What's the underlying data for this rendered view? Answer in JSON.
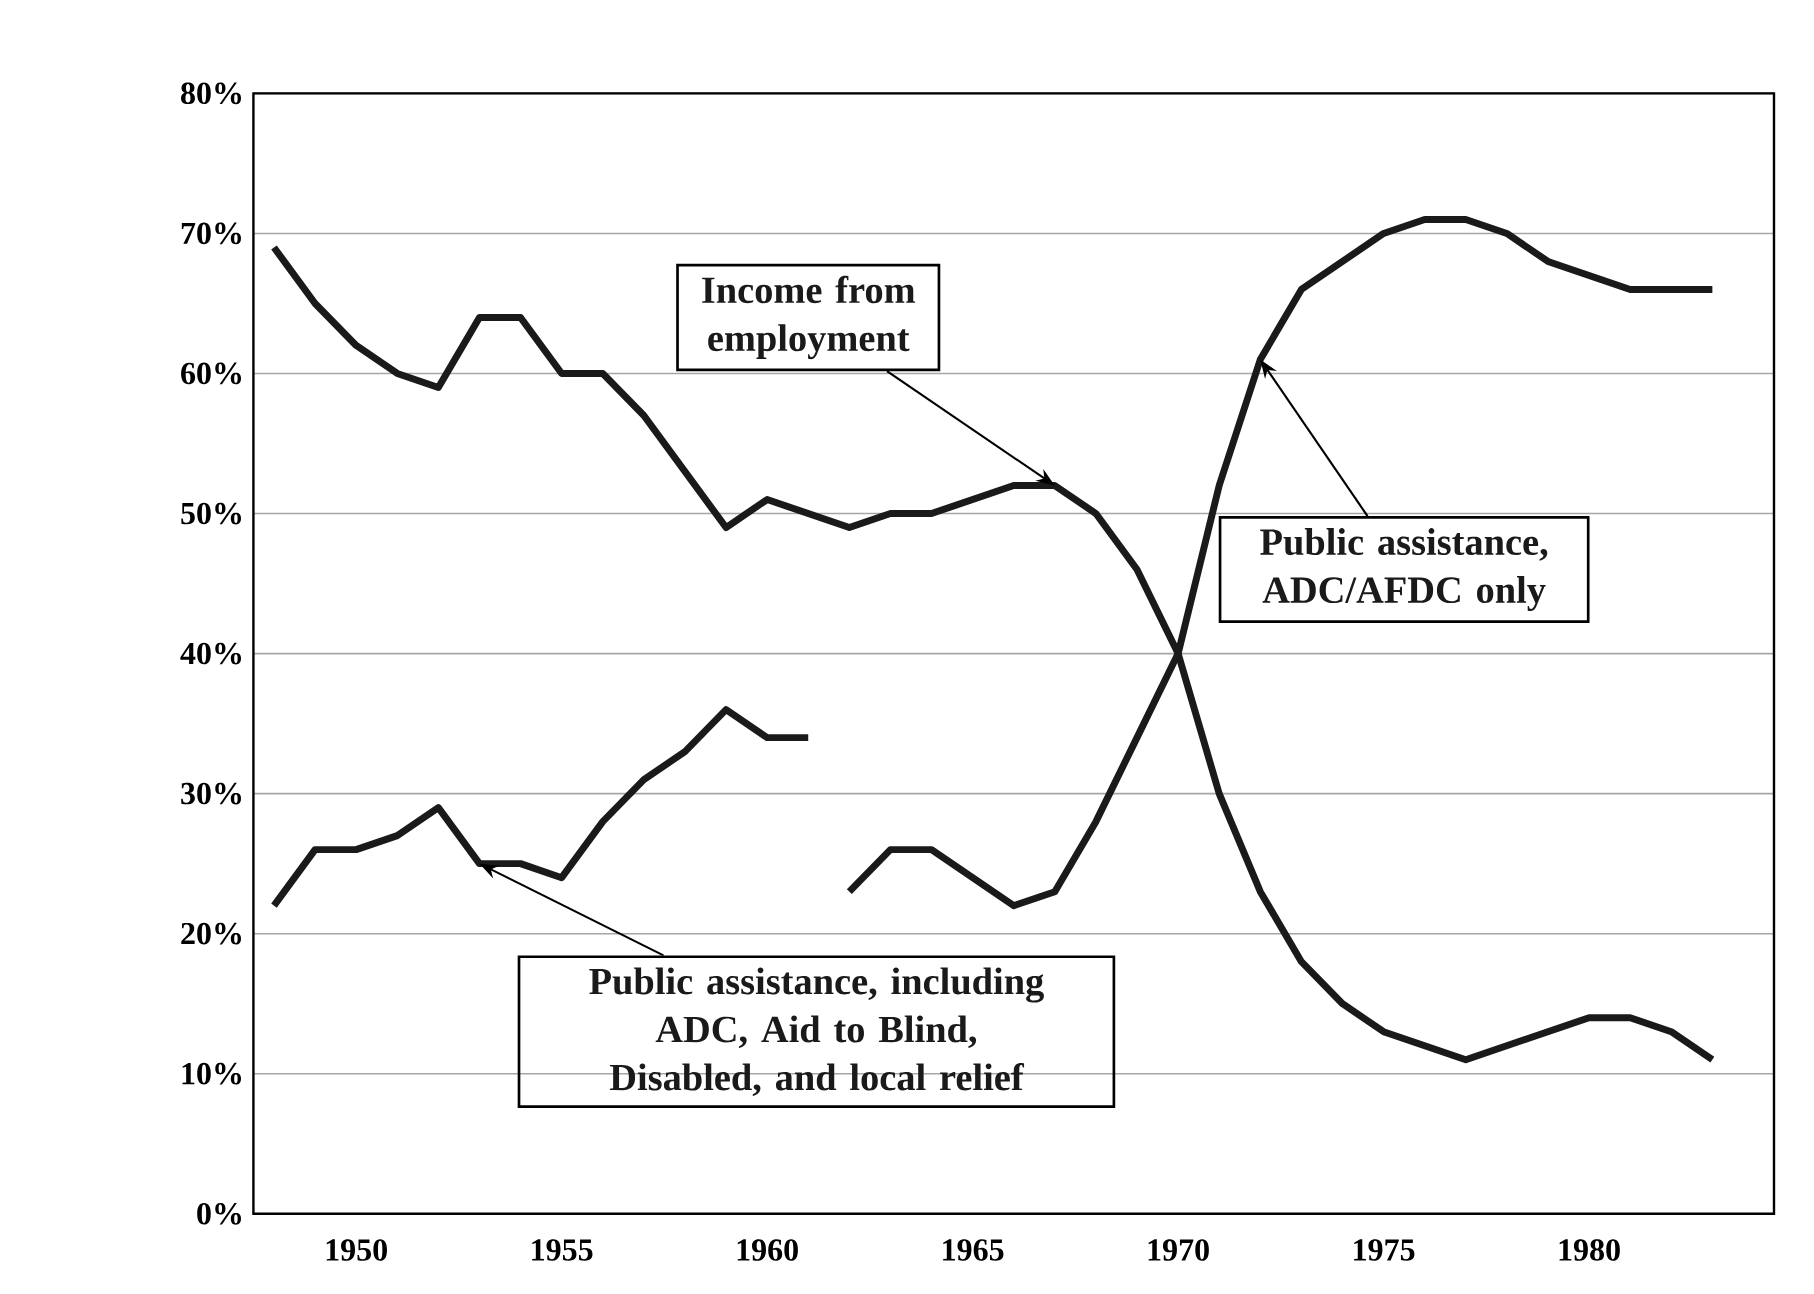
{
  "chart_data": {
    "type": "line",
    "x": [
      1948,
      1949,
      1950,
      1951,
      1952,
      1953,
      1954,
      1955,
      1956,
      1957,
      1958,
      1959,
      1960,
      1961,
      1962,
      1963,
      1964,
      1965,
      1966,
      1967,
      1968,
      1969,
      1970,
      1971,
      1972,
      1973,
      1974,
      1975,
      1976,
      1977,
      1978,
      1979,
      1980,
      1981,
      1982,
      1983
    ],
    "series": [
      {
        "name": "Income from employment",
        "color": "#1a1a1a",
        "values": [
          69,
          65,
          62,
          60,
          59,
          64,
          64,
          60,
          60,
          57,
          53,
          49,
          51,
          50,
          49,
          50,
          50,
          51,
          52,
          52,
          50,
          46,
          40,
          30,
          23,
          18,
          15,
          13,
          12,
          11,
          12,
          13,
          14,
          14,
          13,
          11
        ]
      },
      {
        "name": "Public assistance, including ADC, Aid to Blind, Disabled, and local relief",
        "color": "#1a1a1a",
        "values": [
          22,
          26,
          26,
          27,
          29,
          25,
          25,
          24,
          28,
          31,
          33,
          36,
          34,
          34,
          null,
          null,
          null,
          null,
          null,
          null,
          null,
          null,
          null,
          null,
          null,
          null,
          null,
          null,
          null,
          null,
          null,
          null,
          null,
          null,
          null,
          null
        ]
      },
      {
        "name": "Public assistance, ADC/AFDC only",
        "color": "#1a1a1a",
        "values": [
          null,
          null,
          null,
          null,
          null,
          null,
          null,
          null,
          null,
          null,
          null,
          null,
          null,
          null,
          23,
          26,
          26,
          24,
          22,
          23,
          28,
          34,
          40,
          52,
          61,
          66,
          68,
          70,
          71,
          71,
          70,
          68,
          67,
          66,
          66,
          66
        ]
      }
    ],
    "xlim": [
      1947.5,
      1984.5
    ],
    "xticks": [
      1950,
      1955,
      1960,
      1965,
      1970,
      1975,
      1980
    ],
    "ylim": [
      0,
      80
    ],
    "yticks": [
      {
        "value": 0,
        "label": "0%"
      },
      {
        "value": 10,
        "label": "10%"
      },
      {
        "value": 20,
        "label": "20%"
      },
      {
        "value": 30,
        "label": "30%"
      },
      {
        "value": 40,
        "label": "40%"
      },
      {
        "value": 50,
        "label": "50%"
      },
      {
        "value": 60,
        "label": "60%"
      },
      {
        "value": 70,
        "label": "70%"
      },
      {
        "value": 80,
        "label": "80%"
      }
    ],
    "grid": "y",
    "legend": false,
    "marker": "none",
    "line_style": "solid"
  }
}
